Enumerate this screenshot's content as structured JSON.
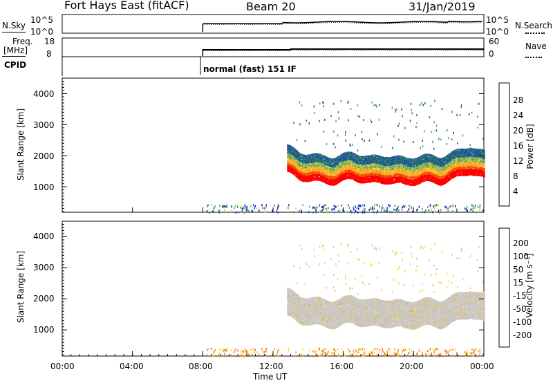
{
  "header": {
    "title_left": "Fort Hays East (fitACF)",
    "title_mid": "Beam 20",
    "title_right": "31/Jan/2019"
  },
  "top_panels": {
    "nsky_label": "N.Sky",
    "nsearch_label": "N.Search",
    "nsky_ticks": [
      "10^5",
      "10^0"
    ],
    "nsky_right_ticks": [
      "10^5",
      "10^0"
    ],
    "freq_label": "Freq.",
    "freq_unit": "[MHz]",
    "freq_ticks": [
      "18",
      "8"
    ],
    "nave_label": "Nave",
    "nave_ticks": [
      "60",
      "0"
    ],
    "cpid_label": "CPID",
    "cpid_text": "normal (fast) 151 IF"
  },
  "power_panel": {
    "ylabel": "Slant Range [km]",
    "colorbar_label": "Power [dB]",
    "colorbar_ticks": [
      "28",
      "24",
      "20",
      "16",
      "12",
      "8",
      "4"
    ],
    "colors": [
      "#0000ff",
      "#1a4aa8",
      "#2f7f5f",
      "#4f9f6a",
      "#c8d040",
      "#ffc030",
      "#f79a20",
      "#f26a10",
      "#ee3a00",
      "#ff0000"
    ]
  },
  "velocity_panel": {
    "ylabel": "Slant Range [km]",
    "colorbar_label": "Velocity [m s⁻¹]",
    "colorbar_ticks": [
      "200",
      "100",
      "50",
      "15",
      "-15",
      "-50",
      "-100",
      "-200"
    ],
    "colors": [
      "#1c2bc8",
      "#2f6cd0",
      "#2f8f4f",
      "#5fcf3f",
      "#c8c8c8",
      "#ffd030",
      "#f8a020",
      "#f07010",
      "#ee3000",
      "#ff0000"
    ]
  },
  "x_axis": {
    "xlabel": "Time UT",
    "ticks": [
      "00:00",
      "04:00",
      "08:00",
      "12:00",
      "16:00",
      "20:00",
      "00:00"
    ]
  },
  "chart_data": [
    {
      "type": "heatmap",
      "title": "Fort Hays East (fitACF)",
      "subtitle": "Beam 20",
      "date": "31/Jan/2019",
      "xlabel": "Time UT",
      "ylabel": "Slant Range [km]",
      "colorbar": "Power [dB]",
      "x_ticks": [
        "00:00",
        "04:00",
        "08:00",
        "12:00",
        "16:00",
        "20:00",
        "00:00"
      ],
      "y_ticks": [
        1000,
        2000,
        3000,
        4000
      ],
      "ylim": [
        180,
        4500
      ],
      "data_start_hour": 8.0,
      "echo_band": {
        "hours": [
          12.8,
          13.5,
          14.5,
          15.5,
          16.5,
          17.5,
          18.5,
          19.5,
          20.5,
          21.5,
          22.5,
          23.2,
          24.0
        ],
        "range_center_km": [
          1800,
          1600,
          1500,
          1450,
          1600,
          1450,
          1500,
          1400,
          1500,
          1450,
          1650,
          1800,
          1600
        ],
        "peak_power_db": [
          20,
          28,
          28,
          28,
          28,
          28,
          28,
          28,
          28,
          28,
          28,
          28,
          28
        ]
      }
    },
    {
      "type": "heatmap",
      "xlabel": "Time UT",
      "ylabel": "Slant Range [km]",
      "colorbar": "Velocity [m s⁻¹]",
      "x_ticks": [
        "00:00",
        "04:00",
        "08:00",
        "12:00",
        "16:00",
        "20:00",
        "00:00"
      ],
      "y_ticks": [
        1000,
        2000,
        3000,
        4000
      ],
      "ylim": [
        180,
        4500
      ],
      "data_start_hour": 8.0,
      "dominant_velocity_range": [
        -15,
        15
      ]
    }
  ]
}
